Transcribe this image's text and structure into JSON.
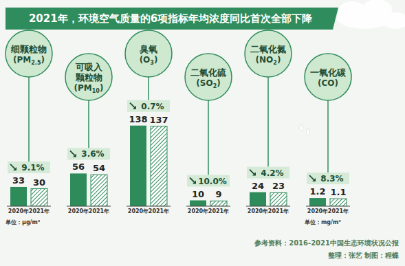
{
  "title": "2021年，环境空气质量的6项指标年均浓度同比首次全部下降",
  "source": "参考资料：2016-2021中国生态环境状况公报",
  "credit": "整理：张艺 制图：程蝶",
  "chart_data": [
    {
      "type": "bar",
      "categories": [
        "细颗粒物(PM2.5)",
        "可吸入颗粒物(PM10)",
        "臭氧(O3)",
        "二氧化硫(SO2)",
        "二氧化氮(NO2)"
      ],
      "series": [
        {
          "name": "2020年",
          "color": "#2e8b5a",
          "values": [
            33,
            56,
            138,
            10,
            24
          ]
        },
        {
          "name": "2021年",
          "color": "#2e8b5a",
          "values": [
            30,
            54,
            137,
            9,
            23
          ]
        }
      ],
      "changes": [
        9.1,
        3.6,
        0.7,
        10.0,
        4.2
      ],
      "change_labels": [
        "9.1%",
        "3.6%",
        "0.7%",
        "10.0%",
        "4.2%"
      ],
      "unit": "单位：μg/m³",
      "ylim": [
        0,
        140
      ],
      "data_labels": true
    },
    {
      "type": "bar",
      "categories": [
        "一氧化碳(CO)"
      ],
      "series": [
        {
          "name": "2020年",
          "color": "#2e8b5a",
          "values": [
            1.2
          ]
        },
        {
          "name": "2021年",
          "color": "#2e8b5a",
          "values": [
            1.1
          ]
        }
      ],
      "changes": [
        8.3
      ],
      "change_labels": [
        "8.3%"
      ],
      "unit": "单位：mg/m³",
      "ylim": [
        0,
        12
      ],
      "data_labels": true
    }
  ]
}
